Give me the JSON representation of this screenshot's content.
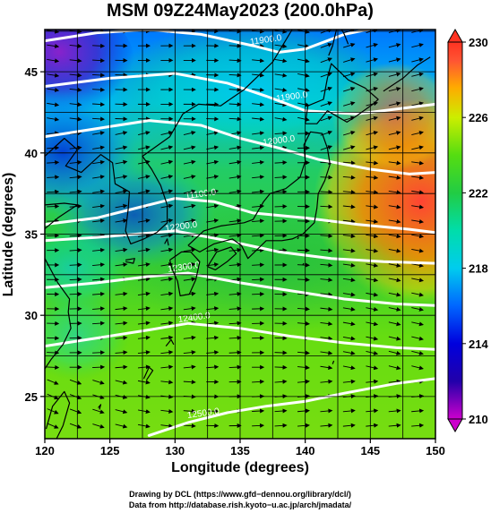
{
  "title": "MSM 09Z24May2023 (200.0hPa)",
  "chart_data": {
    "type": "heatmap",
    "title": "MSM 09Z24May2023 (200.0hPa)",
    "xlabel": "Longitude (degrees)",
    "ylabel": "Latitude  (degrees)",
    "xlim": [
      120,
      150
    ],
    "ylim": [
      22.4,
      47.6
    ],
    "x_ticks": [
      120,
      125,
      130,
      135,
      140,
      145,
      150
    ],
    "y_ticks": [
      25,
      30,
      35,
      40,
      45
    ],
    "x_tick_labels": [
      "120",
      "125",
      "130",
      "135",
      "140",
      "145",
      "150"
    ],
    "y_tick_labels": [
      "25",
      "30",
      "35",
      "40",
      "45"
    ],
    "grid": true,
    "colorbar": {
      "min": 210,
      "max": 230,
      "ticks": [
        210,
        214,
        218,
        222,
        226,
        230
      ],
      "tick_labels": [
        "210",
        "214",
        "218",
        "222",
        "226",
        "230"
      ],
      "colors": [
        "#ff33ff",
        "#cc00cc",
        "#0000cc",
        "#0033ff",
        "#00aaff",
        "#00eedd",
        "#22cc55",
        "#22dd22",
        "#88ee00",
        "#ccee00",
        "#ffcc00",
        "#ff8800",
        "#ff4433",
        "#ff3322"
      ]
    },
    "contours": [
      {
        "label": "11900.0",
        "lon": 137,
        "lat": 46.8
      },
      {
        "label": "11900.0",
        "lon": 139,
        "lat": 43.3
      },
      {
        "label": "12000.0",
        "lon": 138,
        "lat": 40.6
      },
      {
        "label": "11100.0",
        "lon": 132,
        "lat": 37.3
      },
      {
        "label": "12200.0",
        "lon": 130.5,
        "lat": 35.3
      },
      {
        "label": "12300.0",
        "lon": 130.7,
        "lat": 32.8
      },
      {
        "label": "12400.0",
        "lon": 131.5,
        "lat": 29.7
      },
      {
        "label": "12500.0",
        "lon": 132.2,
        "lat": 23.8
      }
    ],
    "vector_field": "wind"
  },
  "credits": {
    "line1": "Drawing by DCL (https://www.gfd−dennou.org/library/dcl/)",
    "line2": "Data from http://database.rish.kyoto−u.ac.jp/arch/jmadata/"
  }
}
